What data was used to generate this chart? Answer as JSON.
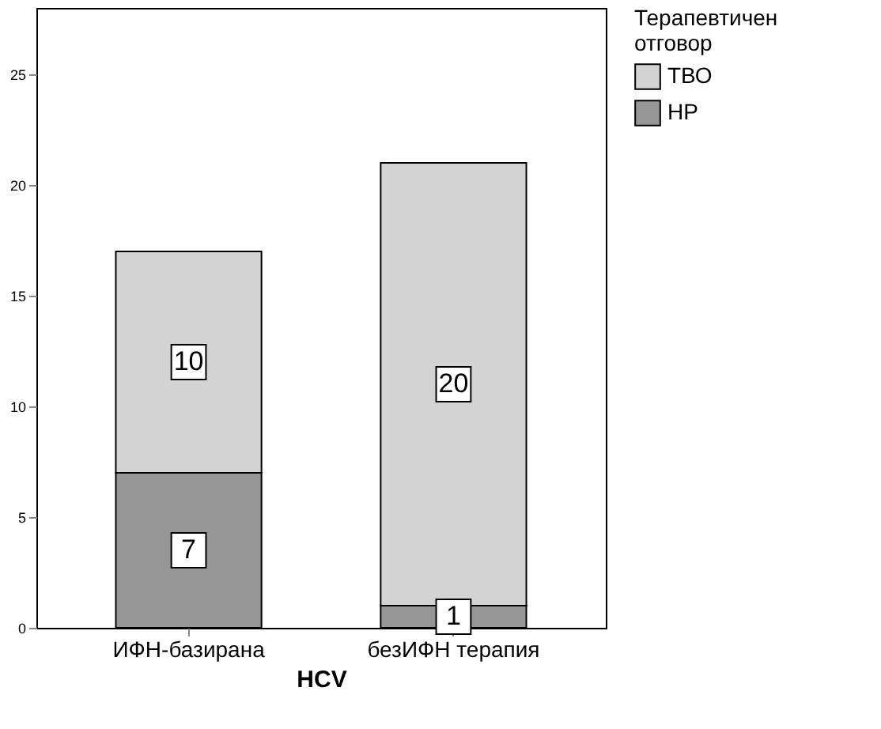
{
  "chart_data": {
    "type": "bar",
    "stacked": true,
    "xlabel": "HCV",
    "legend_title": "Терапевтичен отговор",
    "categories": [
      "ИФН-базирана",
      "безИФН терапия"
    ],
    "series": [
      {
        "name": "НР",
        "color": "#969696",
        "values": [
          7,
          1
        ]
      },
      {
        "name": "ТВО",
        "color": "#d3d3d3",
        "values": [
          10,
          20
        ]
      }
    ],
    "ylim": [
      0,
      28
    ],
    "yticks": [
      0,
      5,
      10,
      15,
      20,
      25
    ],
    "grid": false,
    "legend": "top right",
    "data_labels": true
  }
}
